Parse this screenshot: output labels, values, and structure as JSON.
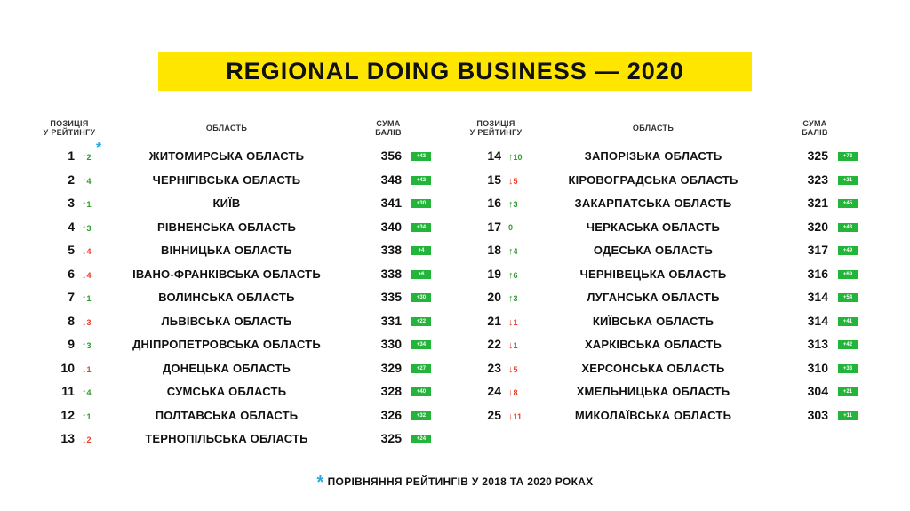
{
  "title": "REGIONAL DOING BUSINESS — 2020",
  "headers": {
    "position_line1": "ПОЗИЦІЯ",
    "position_line2": "У РЕЙТИНГУ",
    "region": "ОБЛАСТЬ",
    "score_line1": "СУМА",
    "score_line2": "БАЛІВ"
  },
  "asterisk": "*",
  "footnote": "ПОРІВНЯННЯ РЕЙТИНГІВ У 2018 ТА 2020 РОКАХ",
  "colors": {
    "accent_yellow": "#ffe600",
    "up_green": "#2a9d2a",
    "down_red": "#e8402a",
    "badge_green": "#22b53a",
    "asterisk_blue": "#27a8e0"
  },
  "left_rows": [
    {
      "rank": "1",
      "dir": "up",
      "chg": "2",
      "region": "ЖИТОМИРСЬКА ОБЛАСТЬ",
      "score": "356",
      "delta": "+43"
    },
    {
      "rank": "2",
      "dir": "up",
      "chg": "4",
      "region": "ЧЕРНІГІВСЬКА ОБЛАСТЬ",
      "score": "348",
      "delta": "+42"
    },
    {
      "rank": "3",
      "dir": "up",
      "chg": "1",
      "region": "КИЇВ",
      "score": "341",
      "delta": "+30"
    },
    {
      "rank": "4",
      "dir": "up",
      "chg": "3",
      "region": "РІВНЕНСЬКА ОБЛАСТЬ",
      "score": "340",
      "delta": "+34"
    },
    {
      "rank": "5",
      "dir": "down",
      "chg": "4",
      "region": "ВІННИЦЬКА ОБЛАСТЬ",
      "score": "338",
      "delta": "+4"
    },
    {
      "rank": "6",
      "dir": "down",
      "chg": "4",
      "region": "ІВАНО-ФРАНКІВСЬКА ОБЛАСТЬ",
      "score": "338",
      "delta": "+6"
    },
    {
      "rank": "7",
      "dir": "up",
      "chg": "1",
      "region": "ВОЛИНСЬКА ОБЛАСТЬ",
      "score": "335",
      "delta": "+30"
    },
    {
      "rank": "8",
      "dir": "down",
      "chg": "3",
      "region": "ЛЬВІВСЬКА ОБЛАСТЬ",
      "score": "331",
      "delta": "+22"
    },
    {
      "rank": "9",
      "dir": "up",
      "chg": "3",
      "region": "ДНІПРОПЕТРОВСЬКА ОБЛАСТЬ",
      "score": "330",
      "delta": "+34"
    },
    {
      "rank": "10",
      "dir": "down",
      "chg": "1",
      "region": "ДОНЕЦЬКА ОБЛАСТЬ",
      "score": "329",
      "delta": "+27"
    },
    {
      "rank": "11",
      "dir": "up",
      "chg": "4",
      "region": "СУМСЬКА ОБЛАСТЬ",
      "score": "328",
      "delta": "+40"
    },
    {
      "rank": "12",
      "dir": "up",
      "chg": "1",
      "region": "ПОЛТАВСЬКА ОБЛАСТЬ",
      "score": "326",
      "delta": "+32"
    },
    {
      "rank": "13",
      "dir": "down",
      "chg": "2",
      "region": "ТЕРНОПІЛЬСЬКА ОБЛАСТЬ",
      "score": "325",
      "delta": "+24"
    }
  ],
  "right_rows": [
    {
      "rank": "14",
      "dir": "up",
      "chg": "10",
      "region": "ЗАПОРІЗЬКА ОБЛАСТЬ",
      "score": "325",
      "delta": "+72"
    },
    {
      "rank": "15",
      "dir": "down",
      "chg": "5",
      "region": "КІРОВОГРАДСЬКА ОБЛАСТЬ",
      "score": "323",
      "delta": "+21"
    },
    {
      "rank": "16",
      "dir": "up",
      "chg": "3",
      "region": "ЗАКАРПАТСЬКА ОБЛАСТЬ",
      "score": "321",
      "delta": "+45"
    },
    {
      "rank": "17",
      "dir": "zero",
      "chg": "0",
      "region": "ЧЕРКАСЬКА ОБЛАСТЬ",
      "score": "320",
      "delta": "+43"
    },
    {
      "rank": "18",
      "dir": "up",
      "chg": "4",
      "region": "ОДЕСЬКА ОБЛАСТЬ",
      "score": "317",
      "delta": "+49"
    },
    {
      "rank": "19",
      "dir": "up",
      "chg": "6",
      "region": "ЧЕРНІВЕЦЬКА ОБЛАСТЬ",
      "score": "316",
      "delta": "+69"
    },
    {
      "rank": "20",
      "dir": "up",
      "chg": "3",
      "region": "ЛУГАНСЬКА ОБЛАСТЬ",
      "score": "314",
      "delta": "+54"
    },
    {
      "rank": "21",
      "dir": "down",
      "chg": "1",
      "region": "КИЇВСЬКА ОБЛАСТЬ",
      "score": "314",
      "delta": "+41"
    },
    {
      "rank": "22",
      "dir": "down",
      "chg": "1",
      "region": "ХАРКІВСЬКА ОБЛАСТЬ",
      "score": "313",
      "delta": "+42"
    },
    {
      "rank": "23",
      "dir": "down",
      "chg": "5",
      "region": "ХЕРСОНСЬКА ОБЛАСТЬ",
      "score": "310",
      "delta": "+33"
    },
    {
      "rank": "24",
      "dir": "down",
      "chg": "8",
      "region": "ХМЕЛЬНИЦЬКА ОБЛАСТЬ",
      "score": "304",
      "delta": "+21"
    },
    {
      "rank": "25",
      "dir": "down",
      "chg": "11",
      "region": "МИКОЛАЇВСЬКА ОБЛАСТЬ",
      "score": "303",
      "delta": "+11"
    }
  ]
}
